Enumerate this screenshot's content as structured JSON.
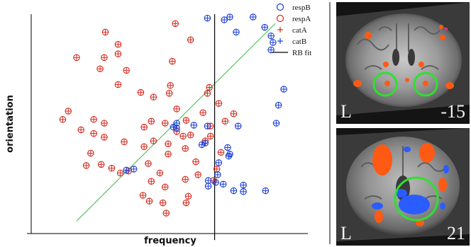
{
  "chart_data": {
    "type": "scatter",
    "xlabel": "frequency",
    "ylabel": "orientation",
    "xlim": [
      0,
      100
    ],
    "ylim": [
      0,
      100
    ],
    "grid": false,
    "legend_position": "top-right",
    "legend": [
      {
        "name": "respB",
        "marker": "circle",
        "color": "#1a3fd6"
      },
      {
        "name": "respA",
        "marker": "circle",
        "color": "#d42a1e"
      },
      {
        "name": "catA",
        "marker": "plus",
        "color": "#d42a1e"
      },
      {
        "name": "catB",
        "marker": "plus",
        "color": "#1a3fd6"
      },
      {
        "name": "RB fit",
        "marker": "line",
        "color": "#000000"
      }
    ],
    "series": [
      {
        "name": "catA",
        "response": "respA",
        "points": [
          [
            52.1,
            95.7
          ],
          [
            26.8,
            91.8
          ],
          [
            31.4,
            86.2
          ],
          [
            57.6,
            88.3
          ],
          [
            31.4,
            81.9
          ],
          [
            16.4,
            80.2
          ],
          [
            26.4,
            80.2
          ],
          [
            51.0,
            78.5
          ],
          [
            24.9,
            75.1
          ],
          [
            31.4,
            67.9
          ],
          [
            34.4,
            74.4
          ],
          [
            49.9,
            63.9
          ],
          [
            44.2,
            62.2
          ],
          [
            39.6,
            64.3
          ],
          [
            50.3,
            67.5
          ],
          [
            63.7,
            63.9
          ],
          [
            43.4,
            51.2
          ],
          [
            52.6,
            56.8
          ],
          [
            62.1,
            55.1
          ],
          [
            64.4,
            66.6
          ],
          [
            56.0,
            51.6
          ],
          [
            48.4,
            50.3
          ],
          [
            52.6,
            46.5
          ],
          [
            54.9,
            44.4
          ],
          [
            40.8,
            48.5
          ],
          [
            13.4,
            55.8
          ],
          [
            11.4,
            52.0
          ],
          [
            22.6,
            52.0
          ],
          [
            26.4,
            50.3
          ],
          [
            22.6,
            45.6
          ],
          [
            18.0,
            47.3
          ],
          [
            26.4,
            43.9
          ],
          [
            33.6,
            41.8
          ],
          [
            40.8,
            39.6
          ],
          [
            44.2,
            42.2
          ],
          [
            49.5,
            40.9
          ],
          [
            55.7,
            38.8
          ],
          [
            57.6,
            44.9
          ],
          [
            64.8,
            49.0
          ],
          [
            64.8,
            44.4
          ],
          [
            21.5,
            36.6
          ],
          [
            25.3,
            31.5
          ],
          [
            29.1,
            29.8
          ],
          [
            32.2,
            27.6
          ],
          [
            19.9,
            31.0
          ],
          [
            35.2,
            28.5
          ],
          [
            42.3,
            31.9
          ],
          [
            49.5,
            36.2
          ],
          [
            46.5,
            27.6
          ],
          [
            43.4,
            23.8
          ],
          [
            48.4,
            21.2
          ],
          [
            55.7,
            24.7
          ],
          [
            60.3,
            26.8
          ],
          [
            65.9,
            24.2
          ],
          [
            56.8,
            17.0
          ],
          [
            40.4,
            17.4
          ],
          [
            42.7,
            14.8
          ],
          [
            47.6,
            14.0
          ],
          [
            56.0,
            14.0
          ],
          [
            48.8,
            9.3
          ],
          [
            59.5,
            32.7
          ],
          [
            67.1,
            29.4
          ],
          [
            62.9,
            42.2
          ],
          [
            68.6,
            37.0
          ],
          [
            70.1,
            51.2
          ],
          [
            73.2,
            54.6
          ],
          [
            67.8,
            59.3
          ]
        ]
      },
      {
        "name": "catB",
        "response": "respB",
        "points": [
          [
            69.8,
            97.4
          ],
          [
            63.7,
            98.2
          ],
          [
            71.8,
            98.7
          ],
          [
            80.2,
            98.7
          ],
          [
            74.1,
            91.8
          ],
          [
            84.4,
            94.0
          ],
          [
            86.7,
            90.1
          ],
          [
            86.7,
            83.7
          ],
          [
            87.4,
            87.1
          ],
          [
            91.3,
            65.8
          ],
          [
            89.4,
            58.5
          ],
          [
            88.6,
            50.3
          ],
          [
            74.8,
            49.0
          ],
          [
            58.8,
            49.4
          ],
          [
            63.7,
            49.0
          ],
          [
            52.6,
            50.3
          ],
          [
            51.4,
            48.5
          ],
          [
            34.4,
            28.9
          ],
          [
            37.1,
            29.4
          ],
          [
            62.9,
            41.3
          ],
          [
            61.7,
            40.5
          ],
          [
            71.0,
            39.2
          ],
          [
            71.8,
            36.2
          ],
          [
            71.4,
            35.3
          ],
          [
            67.8,
            32.3
          ],
          [
            67.4,
            26.8
          ],
          [
            64.0,
            24.2
          ],
          [
            66.7,
            23.3
          ],
          [
            64.0,
            21.6
          ],
          [
            69.4,
            22.5
          ],
          [
            73.2,
            19.5
          ],
          [
            76.7,
            22.1
          ],
          [
            76.7,
            19.1
          ],
          [
            84.7,
            19.5
          ],
          [
            52.6,
            48.1
          ]
        ]
      }
    ],
    "rb_fit_x": 66.3,
    "diagonal_bound": [
      [
        16.4,
        5.7
      ],
      [
        88.2,
        95.7
      ]
    ]
  },
  "brain_panels": [
    {
      "label": "L",
      "slice": "-15"
    },
    {
      "label": "L",
      "slice": "21"
    }
  ],
  "colors": {
    "catA": "#d42a1e",
    "catB": "#1a3fd6",
    "diagonal": "#58c45a",
    "rb_fit": "#000000",
    "roi_circle": "#2ee02e",
    "activation_hot": "#ff5a14",
    "activation_cold": "#2a5cff"
  }
}
